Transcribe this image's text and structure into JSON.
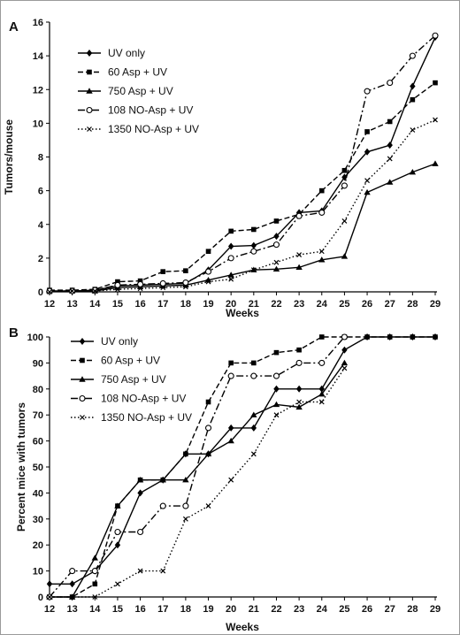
{
  "chart_data": [
    {
      "panel_label": "A",
      "type": "line",
      "xlabel": "Weeks",
      "ylabel": "Tumors/mouse",
      "x": [
        12,
        13,
        14,
        15,
        16,
        17,
        18,
        19,
        20,
        21,
        22,
        23,
        24,
        25,
        26,
        27,
        28,
        29
      ],
      "xlim": [
        12,
        29
      ],
      "ylim": [
        0,
        16
      ],
      "yticks": [
        0,
        2,
        4,
        6,
        8,
        10,
        12,
        14,
        16
      ],
      "legend_position": "top-left",
      "series": [
        {
          "name": "UV only",
          "style": "solid",
          "marker": "diamond",
          "values": [
            0.05,
            0.05,
            0.1,
            0.35,
            0.4,
            0.45,
            0.5,
            1.3,
            2.7,
            2.75,
            3.3,
            4.7,
            4.8,
            6.8,
            8.3,
            8.7,
            12.2,
            15.1
          ]
        },
        {
          "name": "60 Asp + UV",
          "style": "dashed",
          "marker": "square",
          "values": [
            0.1,
            0.1,
            0.15,
            0.6,
            0.65,
            1.2,
            1.25,
            2.4,
            3.6,
            3.7,
            4.2,
            4.6,
            6.0,
            7.2,
            9.5,
            10.1,
            11.4,
            12.4
          ]
        },
        {
          "name": "750 Asp + UV",
          "style": "solid",
          "marker": "triangle",
          "values": [
            0.05,
            0.05,
            0.05,
            0.25,
            0.3,
            0.35,
            0.4,
            0.7,
            1.0,
            1.3,
            1.35,
            1.45,
            1.9,
            2.1,
            5.9,
            6.5,
            7.1,
            7.6
          ]
        },
        {
          "name": "108 NO-Asp + UV",
          "style": "dashdot",
          "marker": "circle",
          "values": [
            0.05,
            0.05,
            0.1,
            0.4,
            0.45,
            0.5,
            0.55,
            1.2,
            2.0,
            2.4,
            2.8,
            4.5,
            4.7,
            6.3,
            11.9,
            12.4,
            14.0,
            15.2
          ]
        },
        {
          "name": "1350 NO-Asp + UV",
          "style": "dotted",
          "marker": "cross",
          "values": [
            0.0,
            0.05,
            0.05,
            0.15,
            0.2,
            0.25,
            0.3,
            0.6,
            0.75,
            1.3,
            1.75,
            2.2,
            2.4,
            4.2,
            6.6,
            7.9,
            9.6,
            10.2
          ]
        }
      ]
    },
    {
      "panel_label": "B",
      "type": "line",
      "xlabel": "Weeks",
      "ylabel": "Percent mice with tumors",
      "x": [
        12,
        13,
        14,
        15,
        16,
        17,
        18,
        19,
        20,
        21,
        22,
        23,
        24,
        25,
        26,
        27,
        28,
        29
      ],
      "xlim": [
        12,
        29
      ],
      "ylim": [
        0,
        100
      ],
      "yticks": [
        0,
        10,
        20,
        30,
        40,
        50,
        60,
        70,
        80,
        90,
        100
      ],
      "legend_position": "top-left",
      "series": [
        {
          "name": "UV only",
          "style": "solid",
          "marker": "diamond",
          "values": [
            5,
            5,
            10,
            20,
            40,
            45,
            55,
            55,
            65,
            65,
            80,
            80,
            80,
            95,
            100,
            100,
            100,
            100
          ]
        },
        {
          "name": "60 Asp + UV",
          "style": "dashed",
          "marker": "square",
          "values": [
            0,
            0,
            5,
            35,
            45,
            45,
            55,
            75,
            90,
            90,
            94,
            95,
            100,
            100,
            100,
            100,
            100,
            100
          ]
        },
        {
          "name": "750 Asp + UV",
          "style": "solid",
          "marker": "triangle",
          "values": [
            0,
            0,
            15,
            35,
            45,
            45,
            45,
            55,
            60,
            70,
            74,
            73,
            78,
            90,
            null,
            null,
            null,
            null
          ]
        },
        {
          "name": "108 NO-Asp + UV",
          "style": "dashdot",
          "marker": "circle",
          "values": [
            0,
            10,
            10,
            25,
            25,
            35,
            35,
            65,
            85,
            85,
            85,
            90,
            90,
            100,
            null,
            null,
            null,
            null
          ]
        },
        {
          "name": "1350 NO-Asp + UV",
          "style": "dotted",
          "marker": "cross",
          "values": [
            0,
            0,
            0,
            5,
            10,
            10,
            30,
            35,
            45,
            55,
            70,
            75,
            75,
            88,
            null,
            null,
            null,
            null
          ]
        }
      ]
    }
  ]
}
